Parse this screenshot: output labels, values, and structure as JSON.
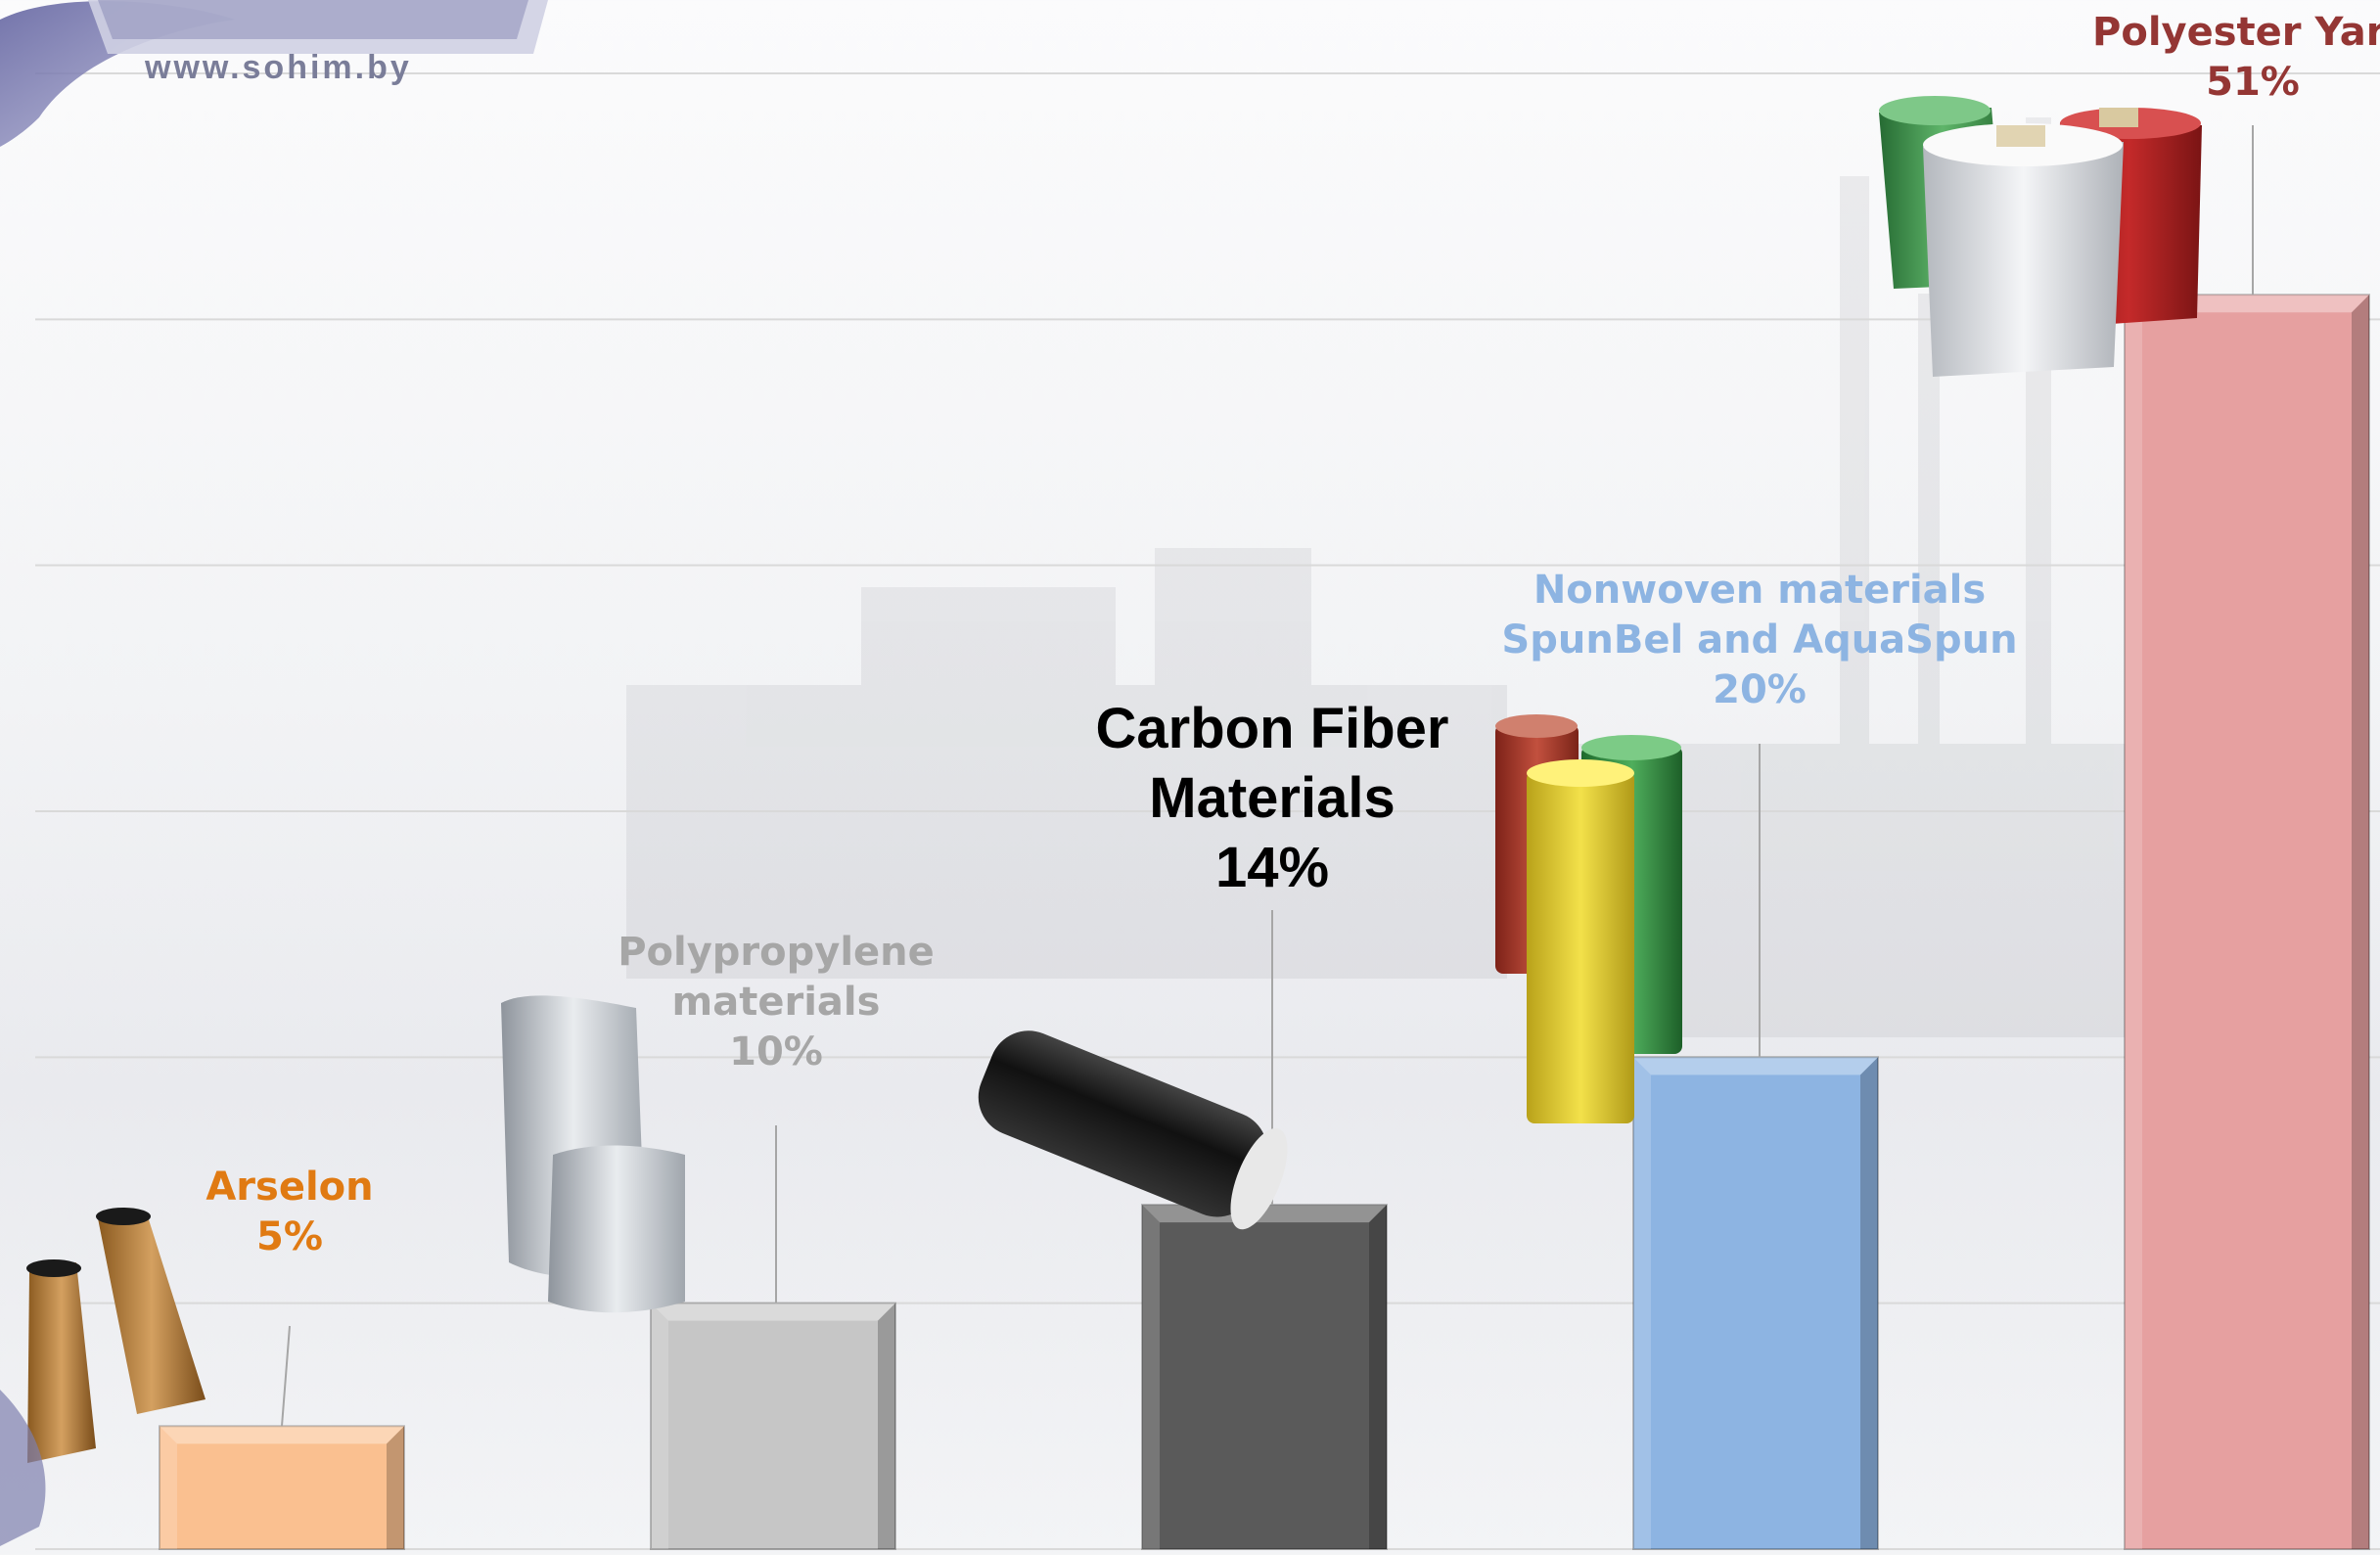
{
  "logo": {
    "website": "www.sohim.by"
  },
  "chart_data": {
    "type": "bar",
    "title": "",
    "xlabel": "",
    "ylabel": "",
    "ylim": [
      0,
      60
    ],
    "grid": true,
    "categories": [
      "Arselon",
      "Polypropylene materials",
      "Carbon Fiber Materials",
      "Nonwoven materials SpunBel and AquaSpun",
      "Polyester Yarn"
    ],
    "values": [
      5,
      10,
      14,
      20,
      51
    ],
    "unit": "%",
    "colors": [
      "#fac090",
      "#c6c6c6",
      "#5a5a5a",
      "#8db4e2",
      "#e6a0a0"
    ],
    "label_colors": [
      "#e07a12",
      "#a6a6a6",
      "#000000",
      "#8db4e2",
      "#943634"
    ],
    "label_lines": [
      [
        "Arselon",
        "5%"
      ],
      [
        "Polypropylene",
        "materials",
        "10%"
      ],
      [
        "Carbon Fiber",
        "Materials",
        "14%"
      ],
      [
        "Nonwoven materials",
        "SpunBel and AquaSpun",
        "20%"
      ],
      [
        "Polyester Yarn",
        "51%"
      ]
    ],
    "product_images": [
      "bobbins-icon",
      "sacks-icon",
      "carbon-spool-icon",
      "fabric-rolls-icon",
      "yarn-cones-icon"
    ]
  }
}
